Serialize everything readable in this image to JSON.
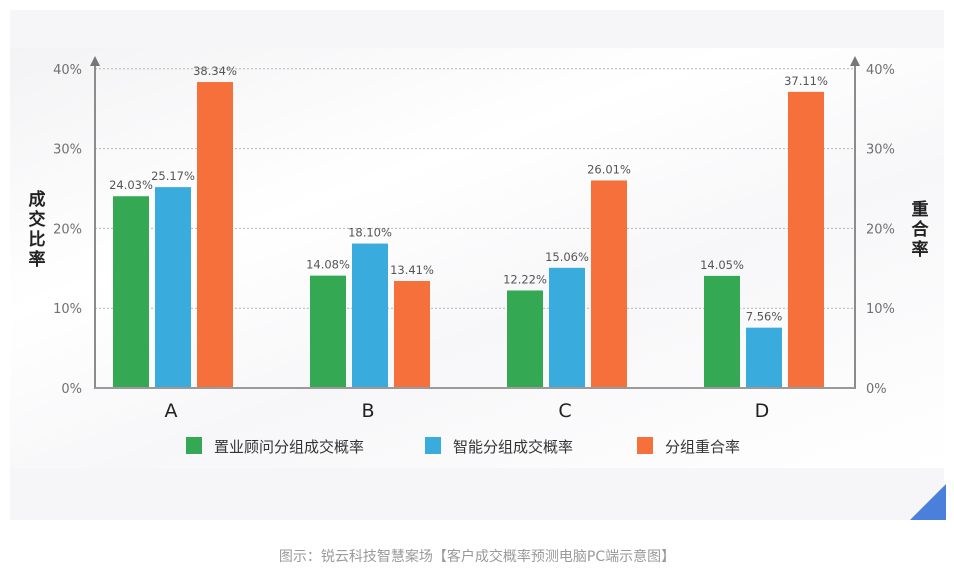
{
  "chart_data": {
    "type": "bar",
    "title": "",
    "categories": [
      "A",
      "B",
      "C",
      "D"
    ],
    "series": [
      {
        "name": "置业顾问分组成交概率",
        "color": "#34a853",
        "axis": "left",
        "values": [
          24.03,
          14.08,
          12.22,
          14.05
        ],
        "labels": [
          "24.03%",
          "14.08%",
          "12.22%",
          "14.05%"
        ]
      },
      {
        "name": "智能分组成交概率",
        "color": "#39abdc",
        "axis": "left",
        "values": [
          25.17,
          18.1,
          15.06,
          7.56
        ],
        "labels": [
          "25.17%",
          "18.10%",
          "15.06%",
          "7.56%"
        ]
      },
      {
        "name": "分组重合率",
        "color": "#f6703c",
        "axis": "right",
        "values": [
          38.34,
          13.41,
          26.01,
          37.11
        ],
        "labels": [
          "38.34%",
          "13.41%",
          "26.01%",
          "37.11%"
        ]
      }
    ],
    "xlabel": "",
    "ylabel": "成交比率",
    "y2label": "重合率",
    "ylim": [
      0,
      40
    ],
    "y2lim": [
      0,
      40
    ],
    "yticks": [
      "0%",
      "10%",
      "20%",
      "30%",
      "40%"
    ],
    "y2ticks": [
      "0%",
      "10%",
      "20%",
      "30%",
      "40%"
    ],
    "grid": true,
    "legend_position": "bottom"
  },
  "axes": {
    "left_title_chars": [
      "成",
      "交",
      "比",
      "率"
    ],
    "right_title_chars": [
      "重",
      "合",
      "率"
    ]
  },
  "caption": "图示：锐云科技智慧案场【客户成交概率预测电脑PC端示意图】",
  "colors": {
    "accent_corner": "#4a7fdb",
    "grid": "#b5b5b5",
    "axis": "#8c8c8c"
  }
}
